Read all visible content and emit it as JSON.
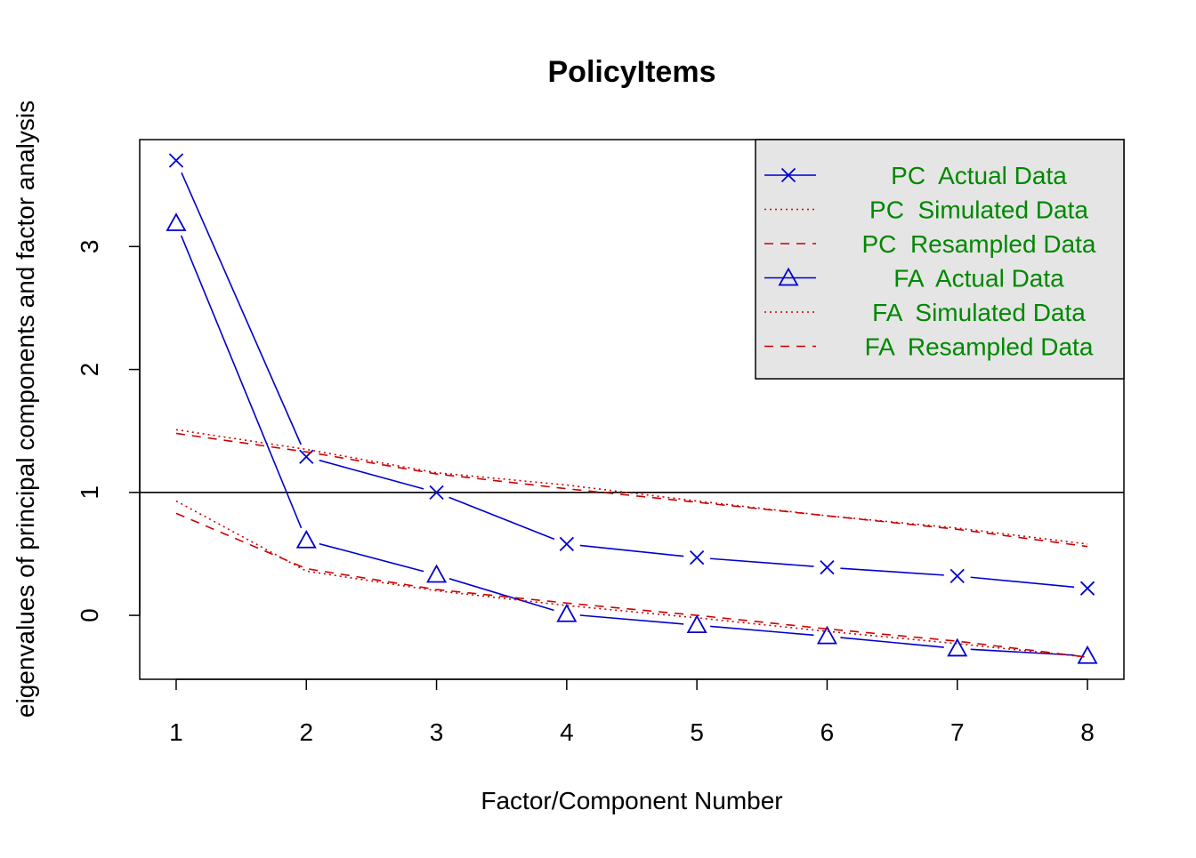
{
  "chart_data": {
    "type": "line",
    "title": "PolicyItems",
    "xlabel": "Factor/Component Number",
    "ylabel": "eigenvalues of principal components and factor analysis",
    "x": [
      1,
      2,
      3,
      4,
      5,
      6,
      7,
      8
    ],
    "xticks": [
      "1",
      "2",
      "3",
      "4",
      "5",
      "6",
      "7",
      "8"
    ],
    "yticks": [
      "0",
      "1",
      "2",
      "3"
    ],
    "xlim": [
      0.72,
      8.28
    ],
    "ylim": [
      -0.52,
      3.87
    ],
    "reference_line": 1,
    "grid": false,
    "legend_position": "top-right",
    "legend_background": "#e5e5e5",
    "legend_text_color": "#008800",
    "series": [
      {
        "name": "PC  Actual Data",
        "group": "PC",
        "values": [
          3.7,
          1.29,
          1.0,
          0.58,
          0.47,
          0.39,
          0.32,
          0.22
        ],
        "color": "#0000cc",
        "line": "solid",
        "marker": "x"
      },
      {
        "name": "PC  Simulated Data",
        "group": "PC",
        "values": [
          1.51,
          1.35,
          1.16,
          1.06,
          0.93,
          0.81,
          0.71,
          0.58
        ],
        "color": "#cc0000",
        "line": "dotted",
        "marker": "none"
      },
      {
        "name": "PC  Resampled Data",
        "group": "PC",
        "values": [
          1.48,
          1.33,
          1.15,
          1.03,
          0.92,
          0.81,
          0.7,
          0.56
        ],
        "color": "#cc0000",
        "line": "dashed",
        "marker": "none"
      },
      {
        "name": "FA  Actual Data",
        "group": "FA",
        "values": [
          3.19,
          0.61,
          0.33,
          0.01,
          -0.08,
          -0.17,
          -0.27,
          -0.33
        ],
        "color": "#0000cc",
        "line": "solid",
        "marker": "triangle"
      },
      {
        "name": "FA  Simulated Data",
        "group": "FA",
        "values": [
          0.93,
          0.36,
          0.2,
          0.08,
          -0.02,
          -0.13,
          -0.23,
          -0.34
        ],
        "color": "#cc0000",
        "line": "dotted",
        "marker": "none"
      },
      {
        "name": "FA  Resampled Data",
        "group": "FA",
        "values": [
          0.83,
          0.38,
          0.21,
          0.1,
          0.0,
          -0.11,
          -0.21,
          -0.34
        ],
        "color": "#cc0000",
        "line": "dashed",
        "marker": "none"
      }
    ]
  }
}
